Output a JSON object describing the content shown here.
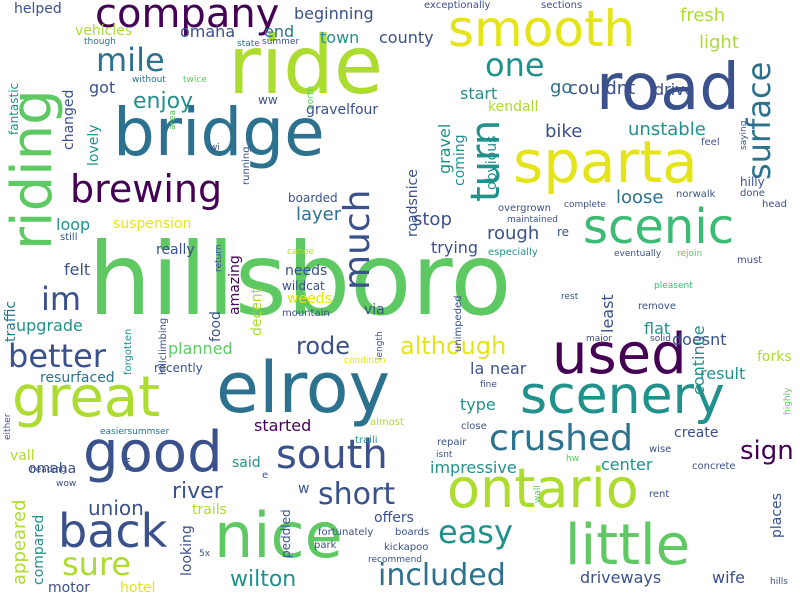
{
  "palette": {
    "dark_purple": "#440154",
    "indigo": "#3b518b",
    "steel_blue": "#2c728e",
    "teal": "#21918c",
    "green": "#3cbb75",
    "light_green": "#5ec962",
    "yellow_green": "#addc30",
    "yellow": "#e5e419"
  },
  "words": [
    {
      "text": "hillsboro",
      "color": "#5ec962",
      "size": 100
    },
    {
      "text": "ride",
      "color": "#addc30",
      "size": 80
    },
    {
      "text": "road",
      "color": "#3b518b",
      "size": 64
    },
    {
      "text": "bridge",
      "color": "#2c728e",
      "size": 66
    },
    {
      "text": "sparta",
      "color": "#e5e419",
      "size": 58
    },
    {
      "text": "riding",
      "color": "#5ec962",
      "size": 56
    },
    {
      "text": "elroy",
      "color": "#2c728e",
      "size": 70
    },
    {
      "text": "used",
      "color": "#440154",
      "size": 56
    },
    {
      "text": "great",
      "color": "#addc30",
      "size": 56
    },
    {
      "text": "scenery",
      "color": "#21918c",
      "size": 52
    },
    {
      "text": "scenic",
      "color": "#3cbb75",
      "size": 48
    },
    {
      "text": "smooth",
      "color": "#e5e419",
      "size": 50
    },
    {
      "text": "good",
      "color": "#3b518b",
      "size": 56
    },
    {
      "text": "nice",
      "color": "#5ec962",
      "size": 62
    },
    {
      "text": "ontario",
      "color": "#addc30",
      "size": 54
    },
    {
      "text": "little",
      "color": "#5ec962",
      "size": 56
    },
    {
      "text": "company",
      "color": "#440154",
      "size": 40
    },
    {
      "text": "brewing",
      "color": "#440154",
      "size": 38
    },
    {
      "text": "back",
      "color": "#3b518b",
      "size": 46
    },
    {
      "text": "south",
      "color": "#3b518b",
      "size": 40
    },
    {
      "text": "crushed",
      "color": "#2c728e",
      "size": 36
    },
    {
      "text": "surface",
      "color": "#2c728e",
      "size": 32
    },
    {
      "text": "turn",
      "color": "#21918c",
      "size": 40
    },
    {
      "text": "much",
      "color": "#3b518b",
      "size": 36
    },
    {
      "text": "mile",
      "color": "#2c728e",
      "size": 32
    },
    {
      "text": "one",
      "color": "#21918c",
      "size": 32
    },
    {
      "text": "better",
      "color": "#3b518b",
      "size": 32
    },
    {
      "text": "im",
      "color": "#3b518b",
      "size": 32
    },
    {
      "text": "easy",
      "color": "#21918c",
      "size": 32
    },
    {
      "text": "sure",
      "color": "#addc30",
      "size": 32
    },
    {
      "text": "short",
      "color": "#3b518b",
      "size": 30
    },
    {
      "text": "included",
      "color": "#2c728e",
      "size": 30
    },
    {
      "text": "sign",
      "color": "#440154",
      "size": 26
    },
    {
      "text": "enjoy",
      "color": "#21918c",
      "size": 22
    },
    {
      "text": "although",
      "color": "#e5e419",
      "size": 24
    },
    {
      "text": "rode",
      "color": "#3b518b",
      "size": 24
    },
    {
      "text": "river",
      "color": "#3b518b",
      "size": 22
    },
    {
      "text": "wilton",
      "color": "#21918c",
      "size": 22
    },
    {
      "text": "union",
      "color": "#3b518b",
      "size": 20
    },
    {
      "text": "appeared",
      "color": "#addc30",
      "size": 18
    },
    {
      "text": "loose",
      "color": "#2c728e",
      "size": 18
    },
    {
      "text": "layer",
      "color": "#2c728e",
      "size": 18
    },
    {
      "text": "bike",
      "color": "#3b518b",
      "size": 18
    },
    {
      "text": "rough",
      "color": "#3b518b",
      "size": 18
    },
    {
      "text": "unstable",
      "color": "#21918c",
      "size": 18
    },
    {
      "text": "fresh",
      "color": "#addc30",
      "size": 18
    },
    {
      "text": "light",
      "color": "#addc30",
      "size": 18
    },
    {
      "text": "drive",
      "color": "#3b518b",
      "size": 16
    },
    {
      "text": "couldnt",
      "color": "#3b518b",
      "size": 18
    },
    {
      "text": "go",
      "color": "#2c728e",
      "size": 18
    },
    {
      "text": "start",
      "color": "#21918c",
      "size": 16
    },
    {
      "text": "kendall",
      "color": "#addc30",
      "size": 14
    },
    {
      "text": "gravel",
      "color": "#21918c",
      "size": 16
    },
    {
      "text": "roadsnice",
      "color": "#3b518b",
      "size": 14
    },
    {
      "text": "coming",
      "color": "#21918c",
      "size": 14
    },
    {
      "text": "obvious",
      "color": "#21918c",
      "size": 14
    },
    {
      "text": "stop",
      "color": "#3b518b",
      "size": 18
    },
    {
      "text": "trying",
      "color": "#3b518b",
      "size": 16
    },
    {
      "text": "continue",
      "color": "#21918c",
      "size": 16
    },
    {
      "text": "least",
      "color": "#3b518b",
      "size": 16
    },
    {
      "text": "flat",
      "color": "#21918c",
      "size": 16
    },
    {
      "text": "doesnt",
      "color": "#3b518b",
      "size": 16
    },
    {
      "text": "forks",
      "color": "#addc30",
      "size": 14
    },
    {
      "text": "result",
      "color": "#21918c",
      "size": 16
    },
    {
      "text": "near",
      "color": "#3b518b",
      "size": 16
    },
    {
      "text": "la",
      "color": "#3b518b",
      "size": 16
    },
    {
      "text": "type",
      "color": "#21918c",
      "size": 16
    },
    {
      "text": "create",
      "color": "#3b518b",
      "size": 14
    },
    {
      "text": "center",
      "color": "#21918c",
      "size": 16
    },
    {
      "text": "impressive",
      "color": "#21918c",
      "size": 16
    },
    {
      "text": "started",
      "color": "#440154",
      "size": 16
    },
    {
      "text": "planned",
      "color": "#5ec962",
      "size": 16
    },
    {
      "text": "recently",
      "color": "#3b518b",
      "size": 12
    },
    {
      "text": "resurfaced",
      "color": "#2c728e",
      "size": 14
    },
    {
      "text": "upgrade",
      "color": "#21918c",
      "size": 16
    },
    {
      "text": "traffic",
      "color": "#2c728e",
      "size": 14
    },
    {
      "text": "felt",
      "color": "#3b518b",
      "size": 16
    },
    {
      "text": "loop",
      "color": "#21918c",
      "size": 16
    },
    {
      "text": "suspension",
      "color": "#e5e419",
      "size": 14
    },
    {
      "text": "really",
      "color": "#3b518b",
      "size": 14
    },
    {
      "text": "boarded",
      "color": "#3b518b",
      "size": 12
    },
    {
      "text": "amazing",
      "color": "#440154",
      "size": 14
    },
    {
      "text": "food",
      "color": "#3b518b",
      "size": 14
    },
    {
      "text": "decent",
      "color": "#addc30",
      "size": 14
    },
    {
      "text": "needs",
      "color": "#3b518b",
      "size": 14
    },
    {
      "text": "wildcat",
      "color": "#3b518b",
      "size": 12
    },
    {
      "text": "weeds",
      "color": "#e5e419",
      "size": 14
    },
    {
      "text": "mountain",
      "color": "#3b518b",
      "size": 10
    },
    {
      "text": "via",
      "color": "#3b518b",
      "size": 14
    },
    {
      "text": "omaha",
      "color": "#3b518b",
      "size": 16
    },
    {
      "text": "end",
      "color": "#2c728e",
      "size": 16
    },
    {
      "text": "town",
      "color": "#21918c",
      "size": 16
    },
    {
      "text": "county",
      "color": "#3b518b",
      "size": 16
    },
    {
      "text": "beginning",
      "color": "#3b518b",
      "size": 16
    },
    {
      "text": "gravelfour",
      "color": "#3b518b",
      "size": 14
    },
    {
      "text": "vehicles",
      "color": "#addc30",
      "size": 14
    },
    {
      "text": "got",
      "color": "#3b518b",
      "size": 16
    },
    {
      "text": "changed",
      "color": "#3b518b",
      "size": 14
    },
    {
      "text": "lovely",
      "color": "#21918c",
      "size": 14
    },
    {
      "text": "ww",
      "color": "#3b518b",
      "size": 12
    },
    {
      "text": "helped",
      "color": "#3b518b",
      "size": 14
    },
    {
      "text": "fantastic",
      "color": "#21918c",
      "size": 12
    },
    {
      "text": "vall",
      "color": "#addc30",
      "size": 14
    },
    {
      "text": "omaha",
      "color": "#3b518b",
      "size": 14
    },
    {
      "text": "compared",
      "color": "#21918c",
      "size": 14
    },
    {
      "text": "driveways",
      "color": "#3b518b",
      "size": 16
    },
    {
      "text": "wife",
      "color": "#3b518b",
      "size": 16
    },
    {
      "text": "motor",
      "color": "#3b518b",
      "size": 14
    },
    {
      "text": "hotel",
      "color": "#e5e419",
      "size": 14
    },
    {
      "text": "trails",
      "color": "#addc30",
      "size": 14
    },
    {
      "text": "said",
      "color": "#21918c",
      "size": 14
    },
    {
      "text": "looking",
      "color": "#3b518b",
      "size": 14
    },
    {
      "text": "peddled",
      "color": "#3b518b",
      "size": 12
    },
    {
      "text": "offers",
      "color": "#3b518b",
      "size": 14
    },
    {
      "text": "places",
      "color": "#3b518b",
      "size": 14
    },
    {
      "text": "exceptionally",
      "color": "#3b518b",
      "size": 10
    },
    {
      "text": "sections",
      "color": "#3b518b",
      "size": 10
    },
    {
      "text": "though",
      "color": "#2c728e",
      "size": 9
    },
    {
      "text": "without",
      "color": "#2c728e",
      "size": 9
    },
    {
      "text": "twice",
      "color": "#5ec962",
      "size": 9
    },
    {
      "text": "state",
      "color": "#2c728e",
      "size": 9
    },
    {
      "text": "summer",
      "color": "#3b518b",
      "size": 9
    },
    {
      "text": "north",
      "color": "#5ec962",
      "size": 9
    },
    {
      "text": "wi",
      "color": "#3b518b",
      "size": 9
    },
    {
      "text": "running",
      "color": "#3b518b",
      "size": 10
    },
    {
      "text": "area",
      "color": "#5ec962",
      "size": 9
    },
    {
      "text": "hillclimbing",
      "color": "#3b518b",
      "size": 10
    },
    {
      "text": "forgotten",
      "color": "#21918c",
      "size": 10
    },
    {
      "text": "still",
      "color": "#3b518b",
      "size": 10
    },
    {
      "text": "feel",
      "color": "#3b518b",
      "size": 10
    },
    {
      "text": "saying",
      "color": "#3b518b",
      "size": 9
    },
    {
      "text": "hilly",
      "color": "#3b518b",
      "size": 12
    },
    {
      "text": "done",
      "color": "#3b518b",
      "size": 10
    },
    {
      "text": "norwalk",
      "color": "#3b518b",
      "size": 10
    },
    {
      "text": "head",
      "color": "#3b518b",
      "size": 10
    },
    {
      "text": "complete",
      "color": "#3b518b",
      "size": 9
    },
    {
      "text": "overgrown",
      "color": "#3b518b",
      "size": 10
    },
    {
      "text": "maintained",
      "color": "#3b518b",
      "size": 9
    },
    {
      "text": "re",
      "color": "#3b518b",
      "size": 12
    },
    {
      "text": "especially",
      "color": "#21918c",
      "size": 10
    },
    {
      "text": "eventually",
      "color": "#3b518b",
      "size": 9
    },
    {
      "text": "rejoin",
      "color": "#5ec962",
      "size": 9
    },
    {
      "text": "must",
      "color": "#3b518b",
      "size": 10
    },
    {
      "text": "canoe",
      "color": "#addc30",
      "size": 9
    },
    {
      "text": "return",
      "color": "#3b518b",
      "size": 9
    },
    {
      "text": "rest",
      "color": "#3b518b",
      "size": 9
    },
    {
      "text": "remove",
      "color": "#3b518b",
      "size": 10
    },
    {
      "text": "pleasent",
      "color": "#3cbb75",
      "size": 9
    },
    {
      "text": "major",
      "color": "#3b518b",
      "size": 9
    },
    {
      "text": "solid",
      "color": "#3b518b",
      "size": 9
    },
    {
      "text": "unimpeded",
      "color": "#3b518b",
      "size": 10
    },
    {
      "text": "length",
      "color": "#3b518b",
      "size": 9
    },
    {
      "text": "condition",
      "color": "#e5e419",
      "size": 9
    },
    {
      "text": "fine",
      "color": "#3b518b",
      "size": 9
    },
    {
      "text": "either",
      "color": "#3b518b",
      "size": 9
    },
    {
      "text": "easiersummser",
      "color": "#2c728e",
      "size": 9
    },
    {
      "text": "almost",
      "color": "#addc30",
      "size": 10
    },
    {
      "text": "close",
      "color": "#3b518b",
      "size": 10
    },
    {
      "text": "traili",
      "color": "#21918c",
      "size": 10
    },
    {
      "text": "repair",
      "color": "#3b518b",
      "size": 10
    },
    {
      "text": "isnt",
      "color": "#3b518b",
      "size": 9
    },
    {
      "text": "hw",
      "color": "#5ec962",
      "size": 9
    },
    {
      "text": "wise",
      "color": "#3b518b",
      "size": 10
    },
    {
      "text": "concrete",
      "color": "#3b518b",
      "size": 10
    },
    {
      "text": "highly",
      "color": "#5ec962",
      "size": 9
    },
    {
      "text": "heading",
      "color": "#3b518b",
      "size": 9
    },
    {
      "text": "wow",
      "color": "#3b518b",
      "size": 9
    },
    {
      "text": "f",
      "color": "#3b518b",
      "size": 16
    },
    {
      "text": "w",
      "color": "#3b518b",
      "size": 14
    },
    {
      "text": "e",
      "color": "#3b518b",
      "size": 10
    },
    {
      "text": "5x",
      "color": "#3b518b",
      "size": 9
    },
    {
      "text": "park",
      "color": "#3b518b",
      "size": 10
    },
    {
      "text": "fortunately",
      "color": "#3b518b",
      "size": 10
    },
    {
      "text": "boards",
      "color": "#3b518b",
      "size": 10
    },
    {
      "text": "kickapoo",
      "color": "#3b518b",
      "size": 10
    },
    {
      "text": "recommend",
      "color": "#3b518b",
      "size": 9
    },
    {
      "text": "wall",
      "color": "#5ec962",
      "size": 9
    },
    {
      "text": "rent",
      "color": "#3b518b",
      "size": 10
    },
    {
      "text": "hills",
      "color": "#3b518b",
      "size": 9
    }
  ]
}
